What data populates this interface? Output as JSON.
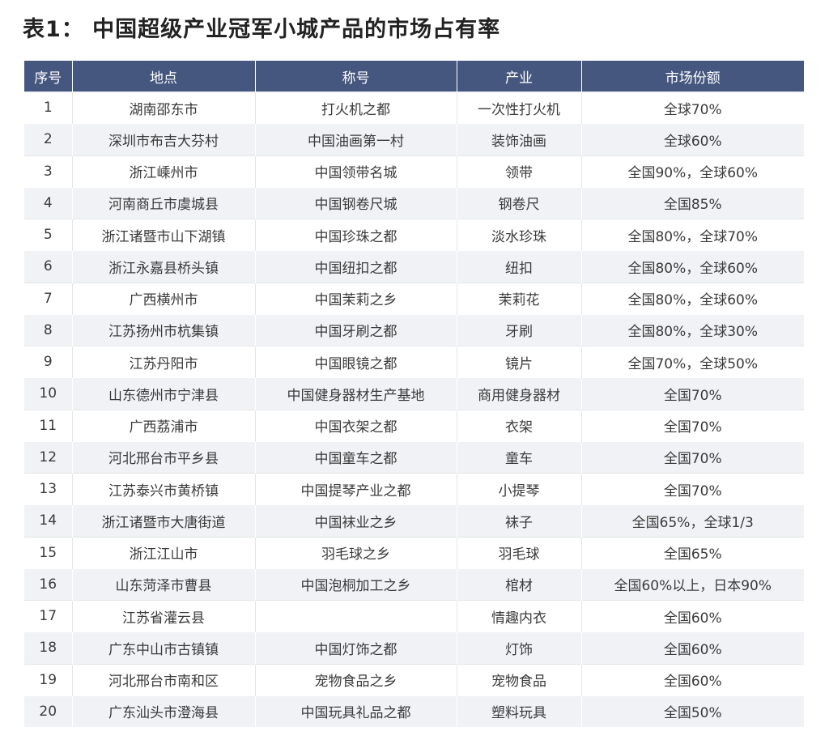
{
  "title": "表1： 中国超级产业冠军小城产品的市场占有率",
  "table": {
    "headers": [
      "序号",
      "地点",
      "称号",
      "产业",
      "市场份额"
    ],
    "rows": [
      [
        "1",
        "湖南邵东市",
        "打火机之都",
        "一次性打火机",
        "全球70%"
      ],
      [
        "2",
        "深圳市布吉大芬村",
        "中国油画第一村",
        "装饰油画",
        "全球60%"
      ],
      [
        "3",
        "浙江嵊州市",
        "中国领带名城",
        "领带",
        "全国90%，全球60%"
      ],
      [
        "4",
        "河南商丘市虞城县",
        "中国钢卷尺城",
        "钢卷尺",
        "全国85%"
      ],
      [
        "5",
        "浙江诸暨市山下湖镇",
        "中国珍珠之都",
        "淡水珍珠",
        "全国80%，全球70%"
      ],
      [
        "6",
        "浙江永嘉县桥头镇",
        "中国纽扣之都",
        "纽扣",
        "全国80%，全球60%"
      ],
      [
        "7",
        "广西横州市",
        "中国茉莉之乡",
        "茉莉花",
        "全国80%，全球60%"
      ],
      [
        "8",
        "江苏扬州市杭集镇",
        "中国牙刷之都",
        "牙刷",
        "全国80%，全球30%"
      ],
      [
        "9",
        "江苏丹阳市",
        "中国眼镜之都",
        "镜片",
        "全国70%，全球50%"
      ],
      [
        "10",
        "山东德州市宁津县",
        "中国健身器材生产基地",
        "商用健身器材",
        "全国70%"
      ],
      [
        "11",
        "广西荔浦市",
        "中国衣架之都",
        "衣架",
        "全国70%"
      ],
      [
        "12",
        "河北邢台市平乡县",
        "中国童车之都",
        "童车",
        "全国70%"
      ],
      [
        "13",
        "江苏泰兴市黄桥镇",
        "中国提琴产业之都",
        "小提琴",
        "全国70%"
      ],
      [
        "14",
        "浙江诸暨市大唐街道",
        "中国袜业之乡",
        "袜子",
        "全国65%，全球1/3"
      ],
      [
        "15",
        "浙江江山市",
        "羽毛球之乡",
        "羽毛球",
        "全国65%"
      ],
      [
        "16",
        "山东菏泽市曹县",
        "中国泡桐加工之乡",
        "棺材",
        "全国60%以上，日本90%"
      ],
      [
        "17",
        "江苏省灌云县",
        "",
        "情趣内衣",
        "全国60%"
      ],
      [
        "18",
        "广东中山市古镇镇",
        "中国灯饰之都",
        "灯饰",
        "全国60%"
      ],
      [
        "19",
        "河北邢台市南和区",
        "宠物食品之乡",
        "宠物食品",
        "全国60%"
      ],
      [
        "20",
        "广东汕头市澄海县",
        "中国玩具礼品之都",
        "塑料玩具",
        "全国50%"
      ]
    ]
  },
  "colors": {
    "header_bg": "#45567f",
    "header_text": "#ffffff",
    "stripe_bg": "#f0f2f5"
  }
}
